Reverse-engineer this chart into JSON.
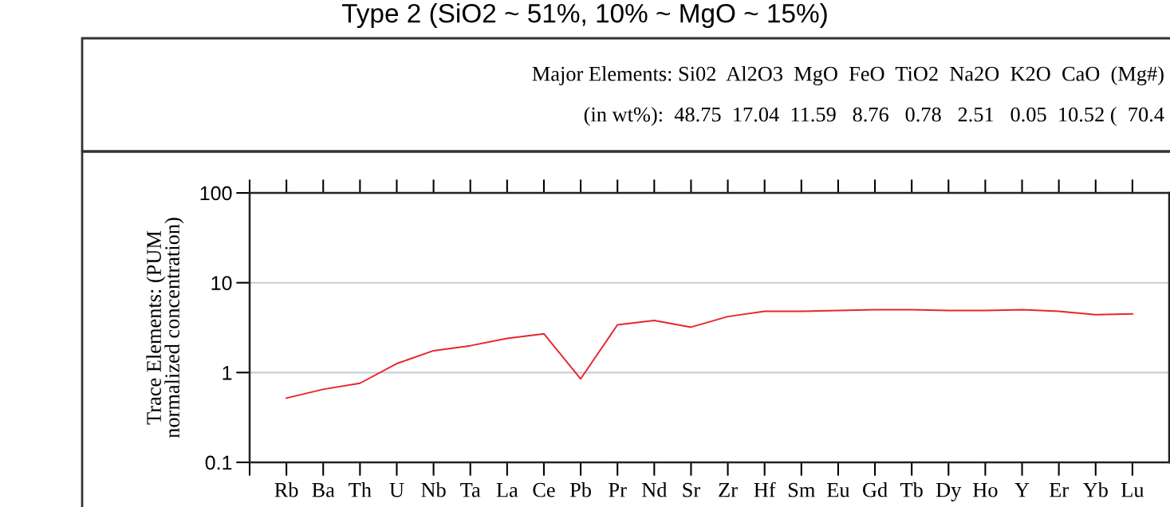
{
  "chart_data": {
    "type": "line",
    "title": "Type 2 (SiO2 ~ 51%, 10% ~ MgO ~ 15%)",
    "annotations": [
      "Major Elements: Si02  Al2O3  MgO  FeO  TiO2  Na2O  K2O  CaO  (Mg#)",
      "(in wt%):  48.75  17.04  11.59   8.76   0.78   2.51   0.05  10.52 (  70.4"
    ],
    "ylabel": "Trace Elements: (PUM\nnormalized concentration)",
    "categories": [
      "Rb",
      "Ba",
      "Th",
      "U",
      "Nb",
      "Ta",
      "La",
      "Ce",
      "Pb",
      "Pr",
      "Nd",
      "Sr",
      "Zr",
      "Hf",
      "Sm",
      "Eu",
      "Gd",
      "Tb",
      "Dy",
      "Ho",
      "Y",
      "Er",
      "Yb",
      "Lu"
    ],
    "series": [
      {
        "color": "#e8262b",
        "values": [
          0.52,
          0.65,
          0.76,
          1.26,
          1.75,
          1.99,
          2.4,
          2.7,
          0.85,
          3.4,
          3.8,
          3.2,
          4.2,
          4.8,
          4.8,
          4.9,
          5.0,
          5.0,
          4.9,
          4.9,
          5.0,
          4.8,
          4.4,
          4.5
        ]
      }
    ],
    "log": "y",
    "ylim": [
      0.1,
      100
    ],
    "yticks": [
      0.1,
      1,
      10,
      100
    ],
    "grid": "y",
    "marker": "none",
    "line_style": "solid"
  }
}
